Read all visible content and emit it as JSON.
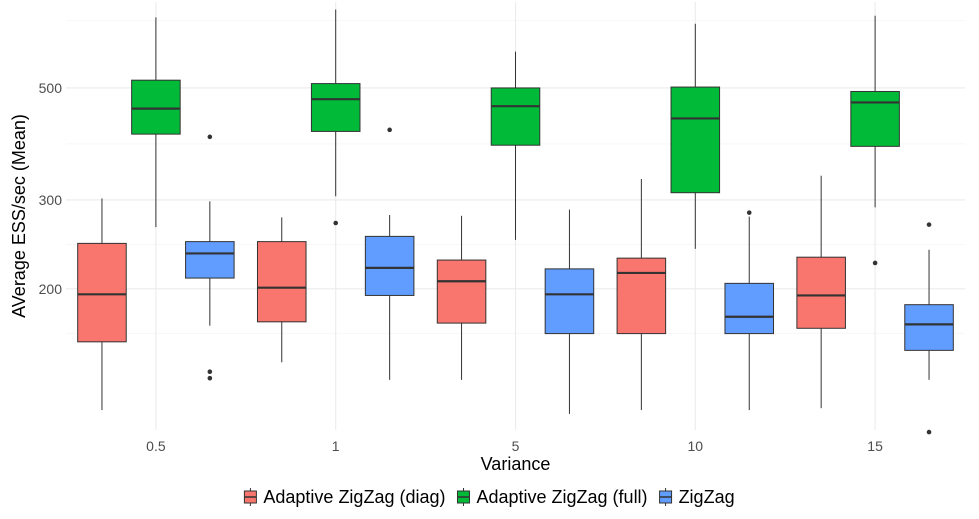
{
  "chart_data": {
    "type": "boxplot",
    "xlabel": "Variance",
    "ylabel": "AVerage ESS/sec (Mean)",
    "y_scale": "log",
    "ylim": [
      105,
      740
    ],
    "y_ticks": [
      200,
      300,
      500
    ],
    "categories": [
      "0.5",
      "1",
      "5",
      "10",
      "15"
    ],
    "grid": true,
    "legend_position": "bottom",
    "series": [
      {
        "name": "Adaptive ZigZag (diag)",
        "color": "#F8766D",
        "boxes": [
          {
            "lower_whisker": 115,
            "q1": 157,
            "median": 195,
            "q3": 246,
            "upper_whisker": 302,
            "outliers": []
          },
          {
            "lower_whisker": 143,
            "q1": 172,
            "median": 201,
            "q3": 248,
            "upper_whisker": 277,
            "outliers": []
          },
          {
            "lower_whisker": 132,
            "q1": 171,
            "median": 207,
            "q3": 228,
            "upper_whisker": 279,
            "outliers": []
          },
          {
            "lower_whisker": 115,
            "q1": 163,
            "median": 215,
            "q3": 230,
            "upper_whisker": 330,
            "outliers": []
          },
          {
            "lower_whisker": 116,
            "q1": 167,
            "median": 194,
            "q3": 231,
            "upper_whisker": 335,
            "outliers": []
          }
        ]
      },
      {
        "name": "Adaptive ZigZag (full)",
        "color": "#00BA38",
        "boxes": [
          {
            "lower_whisker": 265,
            "q1": 405,
            "median": 455,
            "q3": 518,
            "upper_whisker": 690,
            "outliers": []
          },
          {
            "lower_whisker": 305,
            "q1": 410,
            "median": 475,
            "q3": 510,
            "upper_whisker": 715,
            "outliers": [
              270
            ]
          },
          {
            "lower_whisker": 250,
            "q1": 385,
            "median": 460,
            "q3": 500,
            "upper_whisker": 590,
            "outliers": []
          },
          {
            "lower_whisker": 240,
            "q1": 310,
            "median": 435,
            "q3": 502,
            "upper_whisker": 670,
            "outliers": []
          },
          {
            "lower_whisker": 290,
            "q1": 383,
            "median": 468,
            "q3": 492,
            "upper_whisker": 695,
            "outliers": [
              225
            ]
          }
        ]
      },
      {
        "name": "ZigZag",
        "color": "#619CFF",
        "boxes": [
          {
            "lower_whisker": 169,
            "q1": 210,
            "median": 235,
            "q3": 248,
            "upper_whisker": 298,
            "outliers": [
              400,
              137,
              133
            ]
          },
          {
            "lower_whisker": 132,
            "q1": 194,
            "median": 220,
            "q3": 254,
            "upper_whisker": 280,
            "outliers": [
              413
            ]
          },
          {
            "lower_whisker": 113,
            "q1": 163,
            "median": 195,
            "q3": 219,
            "upper_whisker": 287,
            "outliers": []
          },
          {
            "lower_whisker": 115,
            "q1": 163,
            "median": 176,
            "q3": 205,
            "upper_whisker": 278,
            "outliers": [
              283
            ]
          },
          {
            "lower_whisker": 132,
            "q1": 151,
            "median": 170,
            "q3": 186,
            "upper_whisker": 239,
            "outliers": [
              268,
              104
            ]
          }
        ]
      }
    ]
  }
}
